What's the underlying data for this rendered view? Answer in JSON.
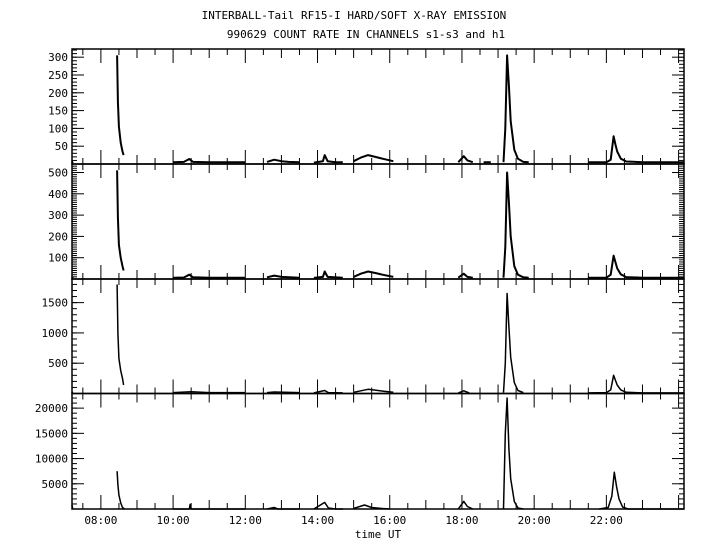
{
  "chart_data": {
    "type": "line",
    "title": "INTERBALL-Tail RF15-I HARD/SOFT X-RAY EMISSION",
    "subtitle": "990629  COUNT RATE IN CHANNELS s1-s3 and h1",
    "xlabel": "time UT",
    "xlim_hours": [
      7.2,
      24.15
    ],
    "x_ticks": [
      {
        "v": 8,
        "label": "08:00"
      },
      {
        "v": 10,
        "label": "10:00"
      },
      {
        "v": 12,
        "label": "12:00"
      },
      {
        "v": 14,
        "label": "14:00"
      },
      {
        "v": 16,
        "label": "16:00"
      },
      {
        "v": 18,
        "label": "18:00"
      },
      {
        "v": 20,
        "label": "20:00"
      },
      {
        "v": 22,
        "label": "22:00"
      }
    ],
    "grid": false,
    "panels": [
      {
        "name": "s1",
        "ylim": [
          0,
          323
        ],
        "y_ticks": [
          50,
          100,
          150,
          200,
          250,
          300
        ],
        "minor": 10,
        "points": [
          [
            7.2,
            8
          ],
          [
            7.22,
            2
          ],
          null,
          [
            8.45,
            305
          ],
          [
            8.47,
            175
          ],
          [
            8.5,
            105
          ],
          [
            8.55,
            60
          ],
          [
            8.6,
            35
          ],
          [
            8.63,
            25
          ],
          null,
          [
            10.0,
            5
          ],
          [
            10.3,
            6
          ],
          [
            10.45,
            14
          ],
          [
            10.55,
            6
          ],
          [
            11.0,
            5
          ],
          [
            11.5,
            5
          ],
          [
            12.0,
            5
          ],
          null,
          [
            12.6,
            6
          ],
          [
            12.8,
            12
          ],
          [
            13.0,
            8
          ],
          [
            13.2,
            6
          ],
          [
            13.5,
            5
          ],
          null,
          [
            13.9,
            4
          ],
          [
            14.15,
            8
          ],
          [
            14.2,
            25
          ],
          [
            14.28,
            8
          ],
          [
            14.5,
            5
          ],
          [
            14.7,
            5
          ],
          null,
          [
            15.0,
            8
          ],
          [
            15.2,
            18
          ],
          [
            15.4,
            25
          ],
          [
            15.6,
            20
          ],
          [
            15.8,
            15
          ],
          [
            16.1,
            8
          ],
          null,
          [
            17.9,
            5
          ],
          [
            18.05,
            22
          ],
          [
            18.15,
            10
          ],
          [
            18.3,
            5
          ],
          null,
          [
            18.6,
            5
          ],
          [
            18.8,
            5
          ],
          null,
          [
            19.15,
            5
          ],
          [
            19.2,
            100
          ],
          [
            19.25,
            305
          ],
          [
            19.3,
            220
          ],
          [
            19.35,
            120
          ],
          [
            19.45,
            40
          ],
          [
            19.55,
            15
          ],
          [
            19.7,
            6
          ],
          [
            19.85,
            5
          ],
          null,
          [
            20.1,
            5
          ],
          null,
          [
            21.5,
            5
          ],
          [
            22.0,
            5
          ],
          [
            22.12,
            12
          ],
          [
            22.2,
            78
          ],
          [
            22.25,
            55
          ],
          [
            22.3,
            35
          ],
          [
            22.4,
            15
          ],
          [
            22.55,
            7
          ],
          [
            23.0,
            5
          ],
          [
            23.5,
            5
          ],
          [
            24.15,
            5
          ]
        ]
      },
      {
        "name": "s2",
        "ylim": [
          0,
          540
        ],
        "y_ticks": [
          100,
          200,
          300,
          400,
          500
        ],
        "minor": 10,
        "points": [
          [
            7.2,
            10
          ],
          [
            7.22,
            3
          ],
          null,
          [
            8.45,
            510
          ],
          [
            8.47,
            290
          ],
          [
            8.5,
            160
          ],
          [
            8.55,
            100
          ],
          [
            8.6,
            60
          ],
          [
            8.63,
            40
          ],
          null,
          [
            10.0,
            6
          ],
          [
            10.3,
            7
          ],
          [
            10.45,
            20
          ],
          [
            10.55,
            8
          ],
          [
            11.0,
            6
          ],
          [
            11.5,
            6
          ],
          [
            12.0,
            6
          ],
          null,
          [
            12.6,
            8
          ],
          [
            12.8,
            16
          ],
          [
            13.0,
            10
          ],
          [
            13.5,
            6
          ],
          null,
          [
            13.9,
            5
          ],
          [
            14.15,
            10
          ],
          [
            14.2,
            35
          ],
          [
            14.28,
            10
          ],
          [
            14.7,
            6
          ],
          null,
          [
            15.0,
            10
          ],
          [
            15.2,
            25
          ],
          [
            15.4,
            35
          ],
          [
            15.6,
            28
          ],
          [
            15.8,
            20
          ],
          [
            16.1,
            10
          ],
          null,
          [
            17.9,
            6
          ],
          [
            18.05,
            25
          ],
          [
            18.15,
            10
          ],
          [
            18.3,
            6
          ],
          null,
          [
            19.15,
            6
          ],
          [
            19.2,
            150
          ],
          [
            19.25,
            500
          ],
          [
            19.3,
            360
          ],
          [
            19.35,
            200
          ],
          [
            19.45,
            60
          ],
          [
            19.55,
            20
          ],
          [
            19.7,
            8
          ],
          [
            19.85,
            6
          ],
          null,
          [
            21.5,
            6
          ],
          [
            22.0,
            6
          ],
          [
            22.12,
            20
          ],
          [
            22.2,
            110
          ],
          [
            22.25,
            80
          ],
          [
            22.3,
            50
          ],
          [
            22.4,
            22
          ],
          [
            22.55,
            9
          ],
          [
            23.0,
            6
          ],
          [
            24.15,
            6
          ]
        ]
      },
      {
        "name": "s3",
        "ylim": [
          0,
          1890
        ],
        "y_ticks": [
          500,
          1000,
          1500
        ],
        "minor": 100,
        "points": [
          [
            7.2,
            30
          ],
          [
            7.22,
            5
          ],
          null,
          [
            8.45,
            1800
          ],
          [
            8.47,
            1000
          ],
          [
            8.5,
            580
          ],
          [
            8.55,
            380
          ],
          [
            8.6,
            250
          ],
          [
            8.63,
            140
          ],
          null,
          [
            10.0,
            15
          ],
          [
            10.5,
            30
          ],
          [
            11.0,
            15
          ],
          [
            12.0,
            15
          ],
          null,
          [
            12.6,
            15
          ],
          [
            12.8,
            25
          ],
          [
            13.5,
            15
          ],
          null,
          [
            13.9,
            10
          ],
          [
            14.2,
            50
          ],
          [
            14.3,
            15
          ],
          [
            14.7,
            10
          ],
          null,
          [
            15.0,
            20
          ],
          [
            15.4,
            70
          ],
          [
            15.8,
            40
          ],
          [
            16.1,
            20
          ],
          null,
          [
            17.9,
            10
          ],
          [
            18.05,
            45
          ],
          [
            18.2,
            10
          ],
          null,
          [
            19.15,
            15
          ],
          [
            19.2,
            500
          ],
          [
            19.25,
            1650
          ],
          [
            19.3,
            1100
          ],
          [
            19.35,
            600
          ],
          [
            19.45,
            180
          ],
          [
            19.55,
            50
          ],
          [
            19.7,
            15
          ],
          null,
          [
            21.5,
            10
          ],
          [
            22.0,
            15
          ],
          [
            22.12,
            60
          ],
          [
            22.2,
            300
          ],
          [
            22.25,
            220
          ],
          [
            22.3,
            140
          ],
          [
            22.4,
            60
          ],
          [
            22.55,
            20
          ],
          [
            23.0,
            10
          ],
          [
            24.15,
            10
          ]
        ]
      },
      {
        "name": "h1",
        "ylim": [
          0,
          22900
        ],
        "y_ticks": [
          5000,
          10000,
          15000,
          20000
        ],
        "minor": 1000,
        "points": [
          [
            7.2,
            800
          ],
          [
            7.22,
            0
          ],
          null,
          [
            8.45,
            7500
          ],
          [
            8.47,
            4800
          ],
          [
            8.5,
            2800
          ],
          [
            8.55,
            1200
          ],
          [
            8.6,
            300
          ],
          [
            8.65,
            0
          ],
          null,
          [
            10.0,
            0
          ],
          [
            10.45,
            0
          ],
          [
            10.47,
            900
          ],
          [
            10.5,
            0
          ],
          [
            12.0,
            0
          ],
          null,
          [
            12.6,
            0
          ],
          [
            12.8,
            300
          ],
          [
            12.9,
            0
          ],
          [
            13.5,
            0
          ],
          null,
          [
            13.9,
            0
          ],
          [
            14.2,
            1300
          ],
          [
            14.3,
            200
          ],
          [
            14.5,
            0
          ],
          [
            14.7,
            0
          ],
          null,
          [
            15.0,
            100
          ],
          [
            15.3,
            800
          ],
          [
            15.5,
            300
          ],
          [
            15.8,
            100
          ],
          [
            16.0,
            0
          ],
          null,
          [
            17.9,
            0
          ],
          [
            18.05,
            1500
          ],
          [
            18.15,
            500
          ],
          [
            18.3,
            0
          ],
          null,
          [
            19.15,
            0
          ],
          [
            19.2,
            15000
          ],
          [
            19.25,
            22000
          ],
          [
            19.3,
            12000
          ],
          [
            19.35,
            6000
          ],
          [
            19.45,
            1500
          ],
          [
            19.55,
            200
          ],
          [
            19.7,
            0
          ],
          null,
          [
            21.8,
            0
          ],
          [
            22.05,
            300
          ],
          [
            22.15,
            2500
          ],
          [
            22.22,
            7300
          ],
          [
            22.28,
            4500
          ],
          [
            22.35,
            2000
          ],
          [
            22.45,
            400
          ],
          [
            22.6,
            0
          ],
          [
            23.0,
            0
          ],
          [
            24.15,
            0
          ]
        ]
      }
    ]
  }
}
